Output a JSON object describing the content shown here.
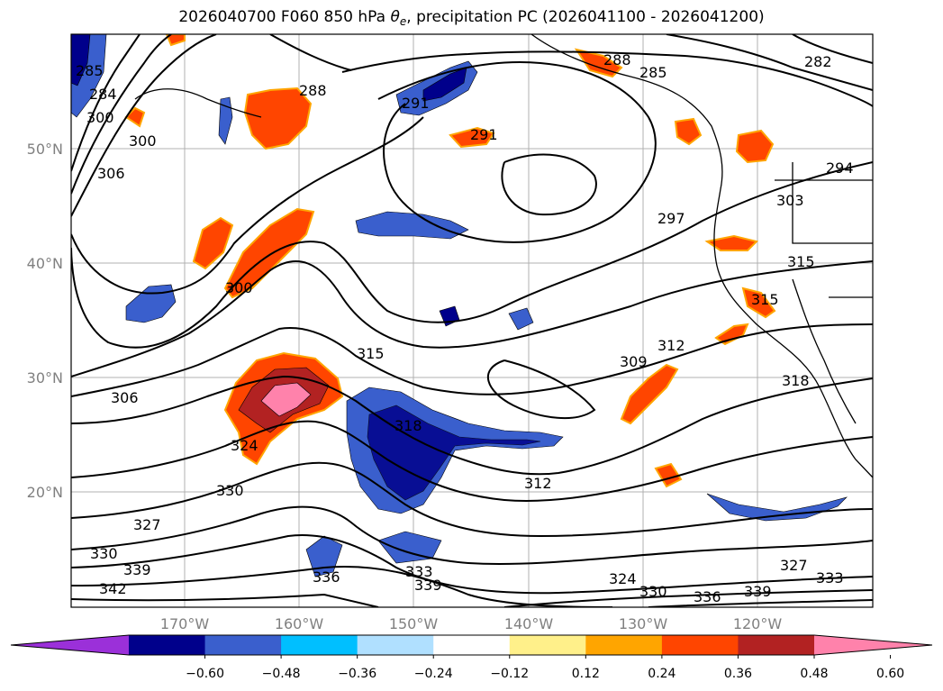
{
  "title": {
    "prefix": "2026040700 F060 850 hPa ",
    "theta": "θ",
    "theta_sub": "e",
    "suffix": ", precipitation PC (2026041100 - 2026041200)"
  },
  "map": {
    "lon_ticks": [
      "170°W",
      "160°W",
      "150°W",
      "140°W",
      "130°W",
      "120°W"
    ],
    "lat_ticks": [
      "50°N",
      "40°N",
      "30°N",
      "20°N"
    ],
    "contour_labels": [
      "285",
      "285",
      "288",
      "284",
      "288",
      "291",
      "294",
      "300",
      "306",
      "300",
      "297",
      "303",
      "315",
      "315",
      "300",
      "306",
      "315",
      "318",
      "309",
      "312",
      "324",
      "330",
      "327",
      "330",
      "339",
      "342",
      "336",
      "333",
      "339",
      "312",
      "324",
      "330",
      "336",
      "339",
      "327",
      "333",
      "291",
      "282",
      "318"
    ]
  },
  "colorbar": {
    "colors": [
      "#9b30d9",
      "#00008b",
      "#3a5fcd",
      "#00bfff",
      "#b0e0ff",
      "#ffffff",
      "#fff08a",
      "#ffa500",
      "#ff4500",
      "#b22222",
      "#ff82ab"
    ],
    "ticks": [
      "−0.60",
      "−0.48",
      "−0.36",
      "−0.24",
      "−0.12",
      "0.12",
      "0.24",
      "0.36",
      "0.48",
      "0.60"
    ]
  }
}
